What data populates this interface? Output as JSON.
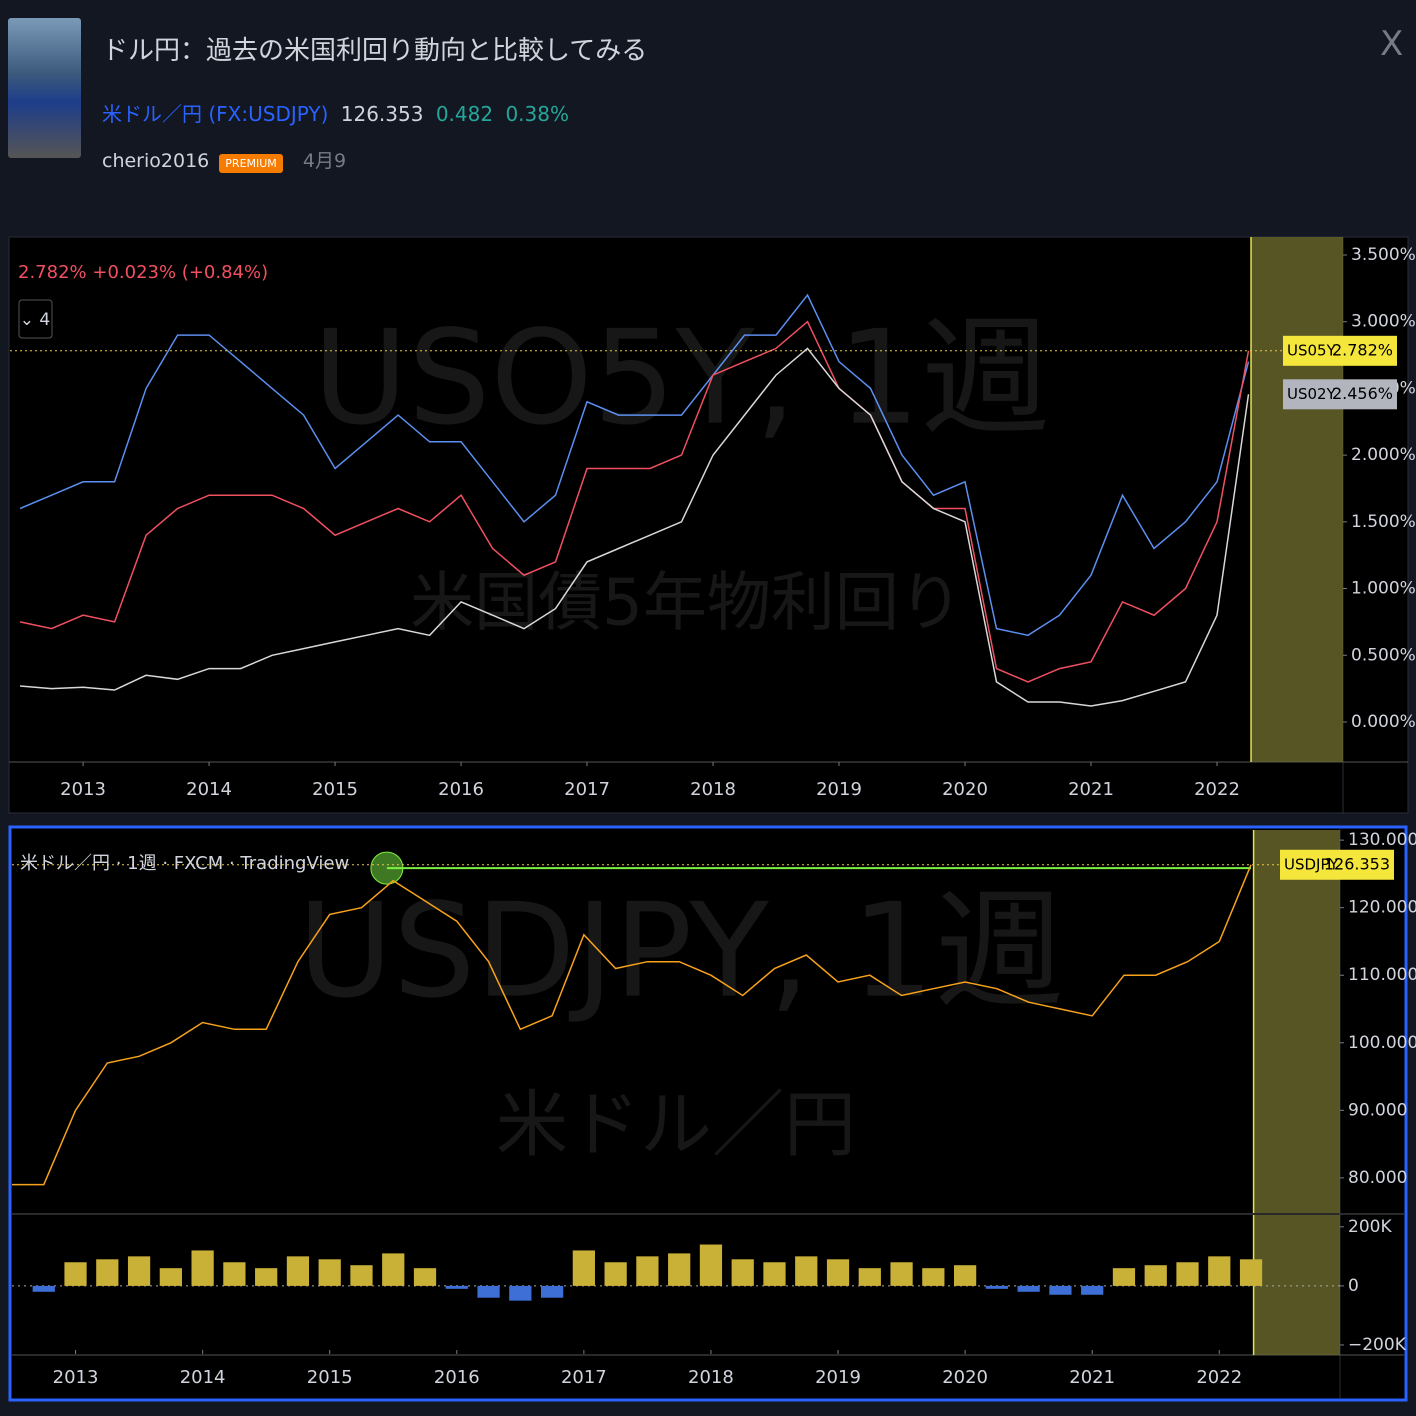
{
  "header": {
    "title": "ドル円：過去の米国利回り動向と比較してみる",
    "symbol": "米ドル／円",
    "ticker": "(FX:USDJPY)",
    "price": "126.353",
    "change": "0.482",
    "change_pct": "0.38%",
    "author": "cherio2016",
    "badge": "PREMIUM",
    "date": "4月9"
  },
  "chart_data": [
    {
      "type": "line",
      "legend": "2.782% +0.023% (+0.84%)",
      "button": "⌄ 4",
      "watermark": "USO5Y, 1週",
      "watermark_sub": "米国債5年物利回り",
      "xlim": [
        2012.42,
        2023.0
      ],
      "xticks": [
        2013,
        2014,
        2015,
        2016,
        2017,
        2018,
        2019,
        2020,
        2021,
        2022
      ],
      "highlight": [
        2022.27,
        2023.0
      ],
      "ylim": [
        -0.3,
        3.635
      ],
      "yticks": [
        {
          "value": 0,
          "label": "0.000%"
        },
        {
          "value": 0.5,
          "label": "0.500%"
        },
        {
          "value": 1,
          "label": "1.000%"
        },
        {
          "value": 1.5,
          "label": "1.500%"
        },
        {
          "value": 2,
          "label": "2.000%"
        },
        {
          "value": 2.5,
          "label": "2.500%"
        },
        {
          "value": 3,
          "label": "3.000%"
        },
        {
          "value": 3.5,
          "label": "3.500%"
        }
      ],
      "x": [
        2012.5,
        2012.75,
        2013,
        2013.25,
        2013.5,
        2013.75,
        2014,
        2014.25,
        2014.5,
        2014.75,
        2015,
        2015.25,
        2015.5,
        2015.75,
        2016,
        2016.25,
        2016.5,
        2016.75,
        2017,
        2017.25,
        2017.5,
        2017.75,
        2018,
        2018.25,
        2018.5,
        2018.75,
        2019,
        2019.25,
        2019.5,
        2019.75,
        2020,
        2020.25,
        2020.5,
        2020.75,
        2021,
        2021.25,
        2021.5,
        2021.75,
        2022,
        2022.25
      ],
      "series": [
        {
          "color": "#5b8ff0",
          "values": [
            1.6,
            1.7,
            1.8,
            1.8,
            2.5,
            2.9,
            2.9,
            2.7,
            2.5,
            2.3,
            1.9,
            2.1,
            2.3,
            2.1,
            2.1,
            1.8,
            1.5,
            1.7,
            2.4,
            2.3,
            2.3,
            2.3,
            2.6,
            2.9,
            2.9,
            3.2,
            2.7,
            2.5,
            2.0,
            1.7,
            1.8,
            0.7,
            0.65,
            0.8,
            1.1,
            1.7,
            1.3,
            1.5,
            1.8,
            2.7
          ]
        },
        {
          "name": "US05Y",
          "color": "#f05060",
          "last_label": "2.782%",
          "values": [
            0.75,
            0.7,
            0.8,
            0.75,
            1.4,
            1.6,
            1.7,
            1.7,
            1.7,
            1.6,
            1.4,
            1.5,
            1.6,
            1.5,
            1.7,
            1.3,
            1.1,
            1.2,
            1.9,
            1.9,
            1.9,
            2.0,
            2.6,
            2.7,
            2.8,
            3.0,
            2.5,
            2.3,
            1.8,
            1.6,
            1.6,
            0.4,
            0.3,
            0.4,
            0.45,
            0.9,
            0.8,
            1.0,
            1.5,
            2.782
          ]
        },
        {
          "name": "US02Y",
          "color": "#d8d8d8",
          "last_label": "2.456%",
          "values": [
            0.27,
            0.25,
            0.26,
            0.24,
            0.35,
            0.32,
            0.4,
            0.4,
            0.5,
            0.55,
            0.6,
            0.65,
            0.7,
            0.65,
            0.9,
            0.8,
            0.7,
            0.85,
            1.2,
            1.3,
            1.4,
            1.5,
            2.0,
            2.3,
            2.6,
            2.8,
            2.5,
            2.3,
            1.8,
            1.6,
            1.5,
            0.3,
            0.15,
            0.15,
            0.12,
            0.16,
            0.23,
            0.3,
            0.8,
            2.456
          ]
        }
      ]
    },
    {
      "type": "line",
      "legend": "米ドル／円 · 1週 · FXCM · TradingView",
      "watermark": "USDJPY, 1週",
      "watermark_sub": "米ドル／円",
      "xlim": [
        2012.5,
        2022.95
      ],
      "highlight": [
        2022.27,
        2022.95
      ],
      "ylim": [
        74.8,
        131.5
      ],
      "yticks": [
        {
          "value": 80,
          "label": "80.000"
        },
        {
          "value": 90,
          "label": "90.000"
        },
        {
          "value": 100,
          "label": "100.000"
        },
        {
          "value": 110,
          "label": "110.000"
        },
        {
          "value": 120,
          "label": "120.000"
        },
        {
          "value": 130,
          "label": "130.000"
        }
      ],
      "max_line": {
        "x": [
          2015.45,
          2022.25
        ],
        "y": 125.86
      },
      "x": [
        2012.5,
        2012.75,
        2013,
        2013.25,
        2013.5,
        2013.75,
        2014,
        2014.25,
        2014.5,
        2014.75,
        2015,
        2015.25,
        2015.5,
        2015.75,
        2016,
        2016.25,
        2016.5,
        2016.75,
        2017,
        2017.25,
        2017.5,
        2017.75,
        2018,
        2018.25,
        2018.5,
        2018.75,
        2019,
        2019.25,
        2019.5,
        2019.75,
        2020,
        2020.25,
        2020.5,
        2020.75,
        2021,
        2021.25,
        2021.5,
        2021.75,
        2022,
        2022.25
      ],
      "series": [
        {
          "name": "USDJPY",
          "color": "#f7a21b",
          "last_label": "126.353",
          "values": [
            79,
            79,
            90,
            97,
            98,
            100,
            103,
            102,
            102,
            112,
            119,
            120,
            124,
            121,
            118,
            112,
            102,
            104,
            116,
            111,
            112,
            112,
            110,
            107,
            111,
            113,
            109,
            110,
            107,
            108,
            109,
            108,
            106,
            105,
            104,
            110,
            110,
            112,
            115,
            126.353
          ]
        }
      ]
    },
    {
      "type": "bar",
      "xlim": [
        2012.5,
        2022.95
      ],
      "xticks": [
        2013,
        2014,
        2015,
        2016,
        2017,
        2018,
        2019,
        2020,
        2021,
        2022
      ],
      "highlight": [
        2022.27,
        2022.95
      ],
      "ylim": [
        -234000,
        240000
      ],
      "yticks": [
        {
          "value": 200000,
          "label": "200K"
        },
        0,
        {
          "value": -200000,
          "label": "−200K"
        }
      ],
      "pos_color": "#c9b037",
      "neg_color": "#3d6fd6",
      "x": [
        2012.5,
        2012.75,
        2013,
        2013.25,
        2013.5,
        2013.75,
        2014,
        2014.25,
        2014.5,
        2014.75,
        2015,
        2015.25,
        2015.5,
        2015.75,
        2016,
        2016.25,
        2016.5,
        2016.75,
        2017,
        2017.25,
        2017.5,
        2017.75,
        2018,
        2018.25,
        2018.5,
        2018.75,
        2019,
        2019.25,
        2019.5,
        2019.75,
        2020,
        2020.25,
        2020.5,
        2020.75,
        2021,
        2021.25,
        2021.5,
        2021.75,
        2022,
        2022.25
      ],
      "values": [
        0,
        -20000,
        80000,
        90000,
        100000,
        60000,
        120000,
        80000,
        60000,
        100000,
        90000,
        70000,
        110000,
        60000,
        -10000,
        -40000,
        -50000,
        -40000,
        120000,
        80000,
        100000,
        110000,
        140000,
        90000,
        80000,
        100000,
        90000,
        60000,
        80000,
        60000,
        70000,
        -10000,
        -20000,
        -30000,
        -30000,
        60000,
        70000,
        80000,
        100000,
        90000
      ]
    }
  ]
}
